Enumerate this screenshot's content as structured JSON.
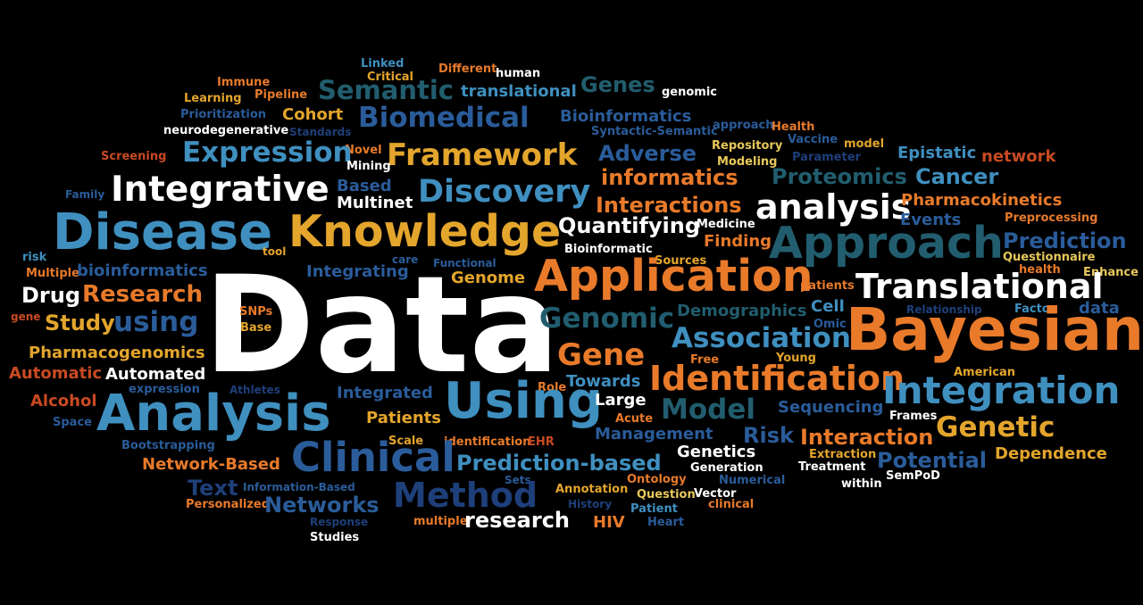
{
  "colors": {
    "white": "#ffffff",
    "blue": "#3f8fbf",
    "orange": "#e87a2a",
    "gold": "#e3a52c",
    "navy": "#2a5c9a",
    "teal": "#215d6e",
    "red": "#c84a22",
    "dnavy": "#1e3f7a",
    "pale": "#e8c85a"
  },
  "words": {
    "linked": "Linked",
    "different": "Different",
    "human": "human",
    "immune": "Immune",
    "critical": "Critical",
    "semantic": "Semantic",
    "translational": "translational",
    "genes": "Genes",
    "genomic": "genomic",
    "learning": "Learning",
    "pipeline": "Pipeline",
    "prioritization": "Prioritization",
    "cohort": "Cohort",
    "biomedical": "Biomedical",
    "bioinformatics": "Bioinformatics",
    "approach_lc": "approach",
    "health": "Health",
    "neurodegenerative": "neurodegenerative",
    "standards": "Standards",
    "syntactic_semantic": "Syntactic-Semantic",
    "vaccine": "Vaccine",
    "model_lc": "model",
    "screening": "Screening",
    "novel": "Novel",
    "repository": "Repository",
    "expression": "Expression",
    "framework": "Framework",
    "adverse": "Adverse",
    "parameter": "Parameter",
    "epistatic": "Epistatic",
    "network_lc": "network",
    "mining": "Mining",
    "modeling": "Modeling",
    "informatics": "informatics",
    "proteomics": "Proteomics",
    "cancer": "Cancer",
    "integrative": "Integrative",
    "based": "Based",
    "discovery": "Discovery",
    "family": "Family",
    "multinet": "Multinet",
    "interactions": "Interactions",
    "analysis_lc": "analysis",
    "pharmacokinetics": "Pharmacokinetics",
    "disease": "Disease",
    "knowledge": "Knowledge",
    "quantifying": "Quantifying",
    "medicine": "Medicine",
    "events": "Events",
    "preprocessing": "Preprocessing",
    "approach": "Approach",
    "finding": "Finding",
    "prediction": "Prediction",
    "tool": "tool",
    "bioinformatic": "Bioinformatic",
    "risk_lc": "risk",
    "care": "care",
    "functional": "Functional",
    "sources": "Sources",
    "questionnaire": "Questionnaire",
    "multiple": "Multiple",
    "bioinformatics_lc": "bioinformatics",
    "integrating": "Integrating",
    "health_lc": "health",
    "enhance": "Enhance",
    "data_big": "Data",
    "genome": "Genome",
    "application": "Application",
    "patients_lc": "patients",
    "translational_big": "Translational",
    "drug": "Drug",
    "research": "Research",
    "cell": "Cell",
    "relationship": "Relationship",
    "factor": "Factor",
    "data_lc": "data",
    "snps": "SNPs",
    "genomic_big": "Genomic",
    "demographics": "Demographics",
    "gene_lc": "gene",
    "study": "Study",
    "using_lc": "using",
    "base": "Base",
    "omic": "Omic",
    "bayesian": "Bayesian",
    "association": "Association",
    "pharmacogenomics": "Pharmacogenomics",
    "gene": "Gene",
    "free": "Free",
    "young": "Young",
    "automatic": "Automatic",
    "automated": "Automated",
    "identification": "Identification",
    "american": "American",
    "role": "Role",
    "towards": "Towards",
    "expression_lc": "expression",
    "athletes": "Athletes",
    "integrated": "Integrated",
    "integration": "Integration",
    "alcohol": "Alcohol",
    "analysis": "Analysis",
    "using": "Using",
    "large": "Large",
    "model": "Model",
    "sequencing": "Sequencing",
    "patients": "Patients",
    "acute": "Acute",
    "space": "Space",
    "frames": "Frames",
    "genetic": "Genetic",
    "risk": "Risk",
    "management": "Management",
    "interaction": "Interaction",
    "bootstrapping": "Bootstrapping",
    "scale": "Scale",
    "identification_lc": "identification",
    "ehr": "EHR",
    "genetics": "Genetics",
    "clinical": "Clinical",
    "extraction": "Extraction",
    "dependence": "Dependence",
    "network_based": "Network-Based",
    "prediction_based": "Prediction-based",
    "generation": "Generation",
    "treatment": "Treatment",
    "potential": "Potential",
    "text": "Text",
    "information_based": "Information-Based",
    "sets": "Sets",
    "ontology": "Ontology",
    "numerical": "Numerical",
    "semPod": "SemPoD",
    "within": "within",
    "method": "Method",
    "annotation": "Annotation",
    "question": "Question",
    "vector": "Vector",
    "personalized": "Personalized",
    "networks": "Networks",
    "history": "History",
    "patient": "Patient",
    "clinical_lc": "clinical",
    "response": "Response",
    "multiple_lc": "multiple",
    "research_lc": "research",
    "hiv": "HIV",
    "heart": "Heart",
    "studies": "Studies"
  }
}
